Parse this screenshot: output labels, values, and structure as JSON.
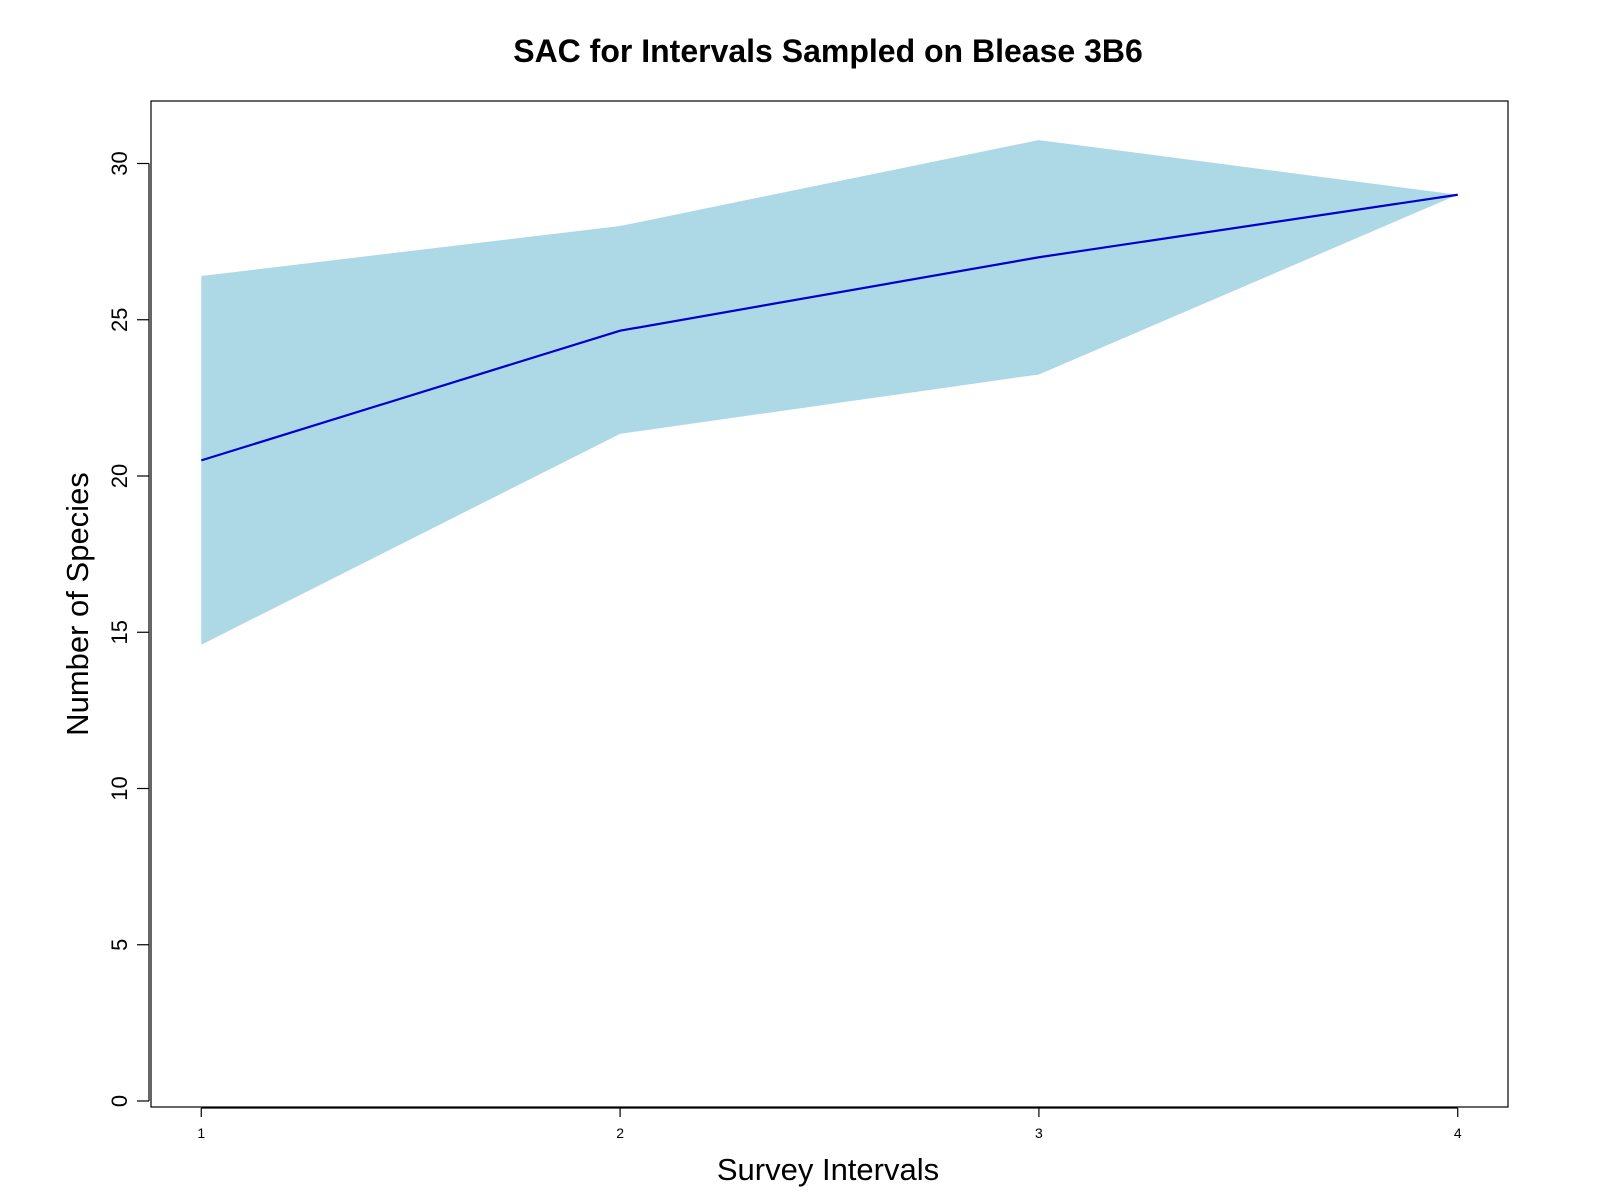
{
  "chart_data": {
    "type": "area",
    "title": "SAC for Intervals Sampled on Blease 3B6",
    "xlabel": "Survey Intervals",
    "ylabel": "Number of Species",
    "x": [
      1,
      2,
      3,
      4
    ],
    "xticks": [
      "1",
      "2",
      "3",
      "4"
    ],
    "yticks": [
      "0",
      "5",
      "10",
      "15",
      "20",
      "25",
      "30"
    ],
    "ylim": [
      0,
      32
    ],
    "xlim": [
      0.88,
      4.12
    ],
    "grid": false,
    "series": [
      {
        "role": "mean",
        "values": [
          20.5,
          24.65,
          27.0,
          29.0
        ],
        "color": "#0000cd"
      },
      {
        "role": "upper",
        "values": [
          26.4,
          28.0,
          30.75,
          29.0
        ],
        "color": "#add8e6"
      },
      {
        "role": "lower",
        "values": [
          14.6,
          21.35,
          23.25,
          29.0
        ],
        "color": "#add8e6"
      }
    ]
  }
}
